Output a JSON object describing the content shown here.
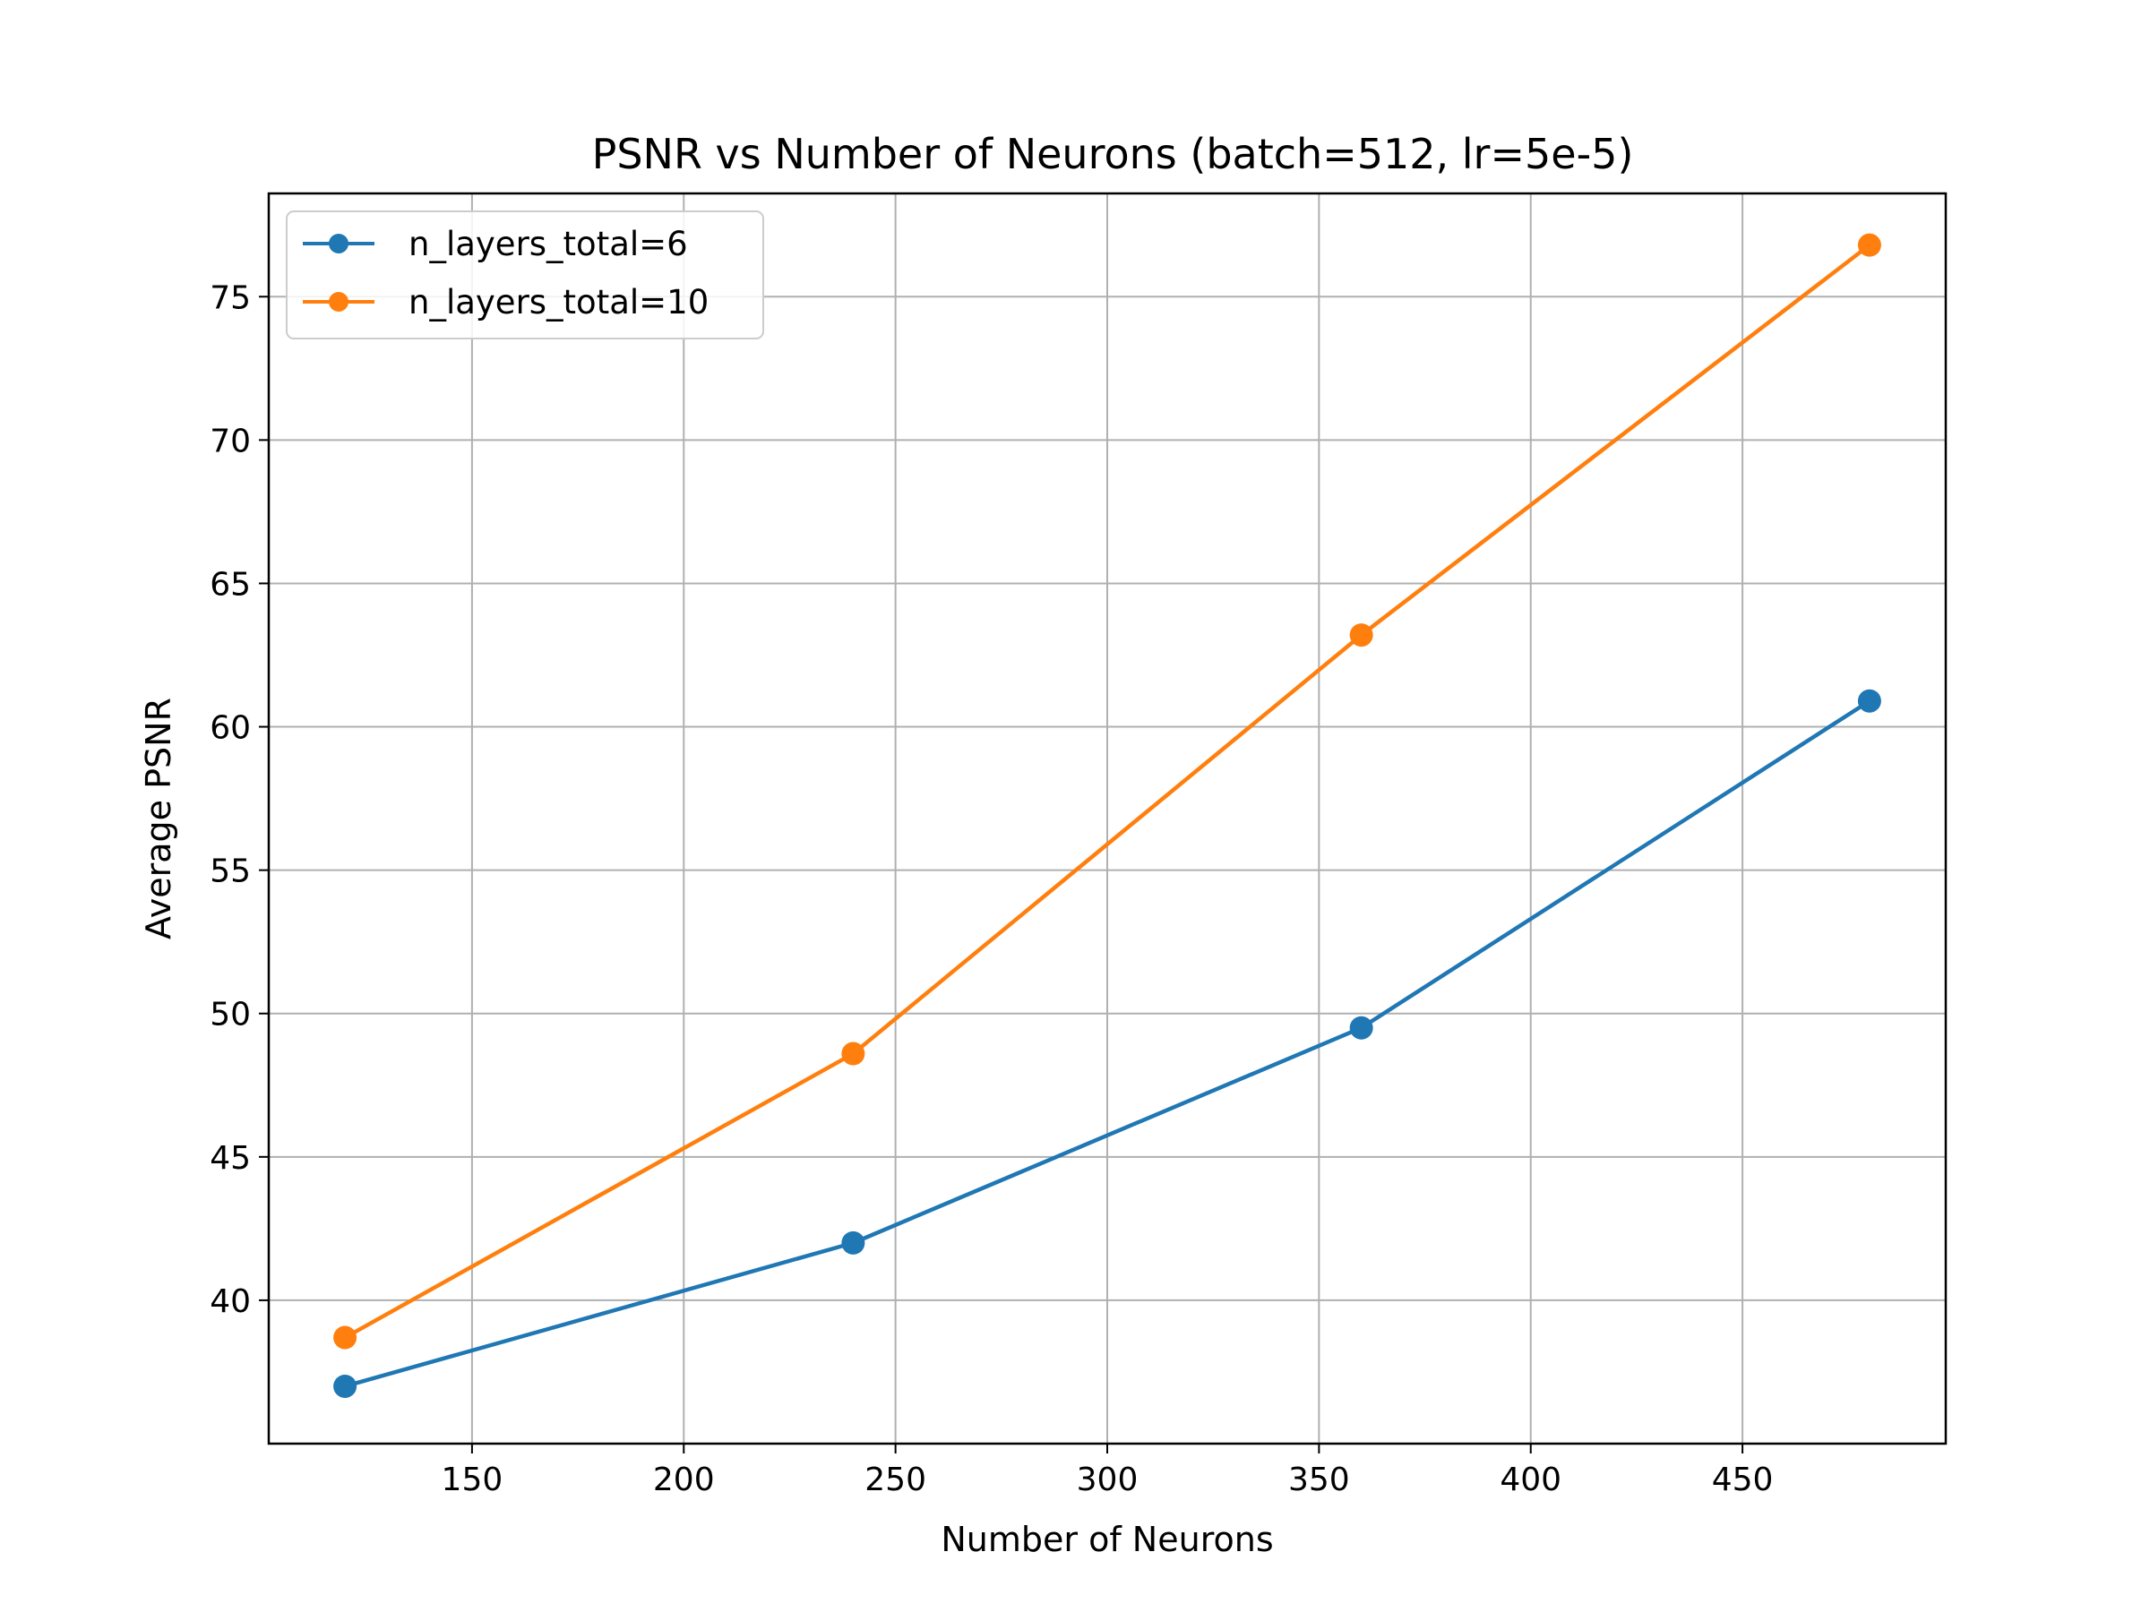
{
  "chart_data": {
    "type": "line",
    "title": "PSNR vs Number of Neurons (batch=512, lr=5e-5)",
    "xlabel": "Number of Neurons",
    "ylabel": "Average PSNR",
    "xlim": [
      102,
      498
    ],
    "ylim": [
      35,
      78.6
    ],
    "xticks": [
      150,
      200,
      250,
      300,
      350,
      400,
      450
    ],
    "yticks": [
      40,
      45,
      50,
      55,
      60,
      65,
      70,
      75
    ],
    "grid": true,
    "legend_position": "top-left",
    "x": [
      120,
      240,
      360,
      480
    ],
    "series": [
      {
        "name": "n_layers_total=6",
        "color": "#1f77b4",
        "values": [
          37.0,
          42.0,
          49.5,
          60.9
        ]
      },
      {
        "name": "n_layers_total=10",
        "color": "#ff7f0e",
        "values": [
          38.7,
          48.6,
          63.2,
          76.8
        ]
      }
    ]
  }
}
